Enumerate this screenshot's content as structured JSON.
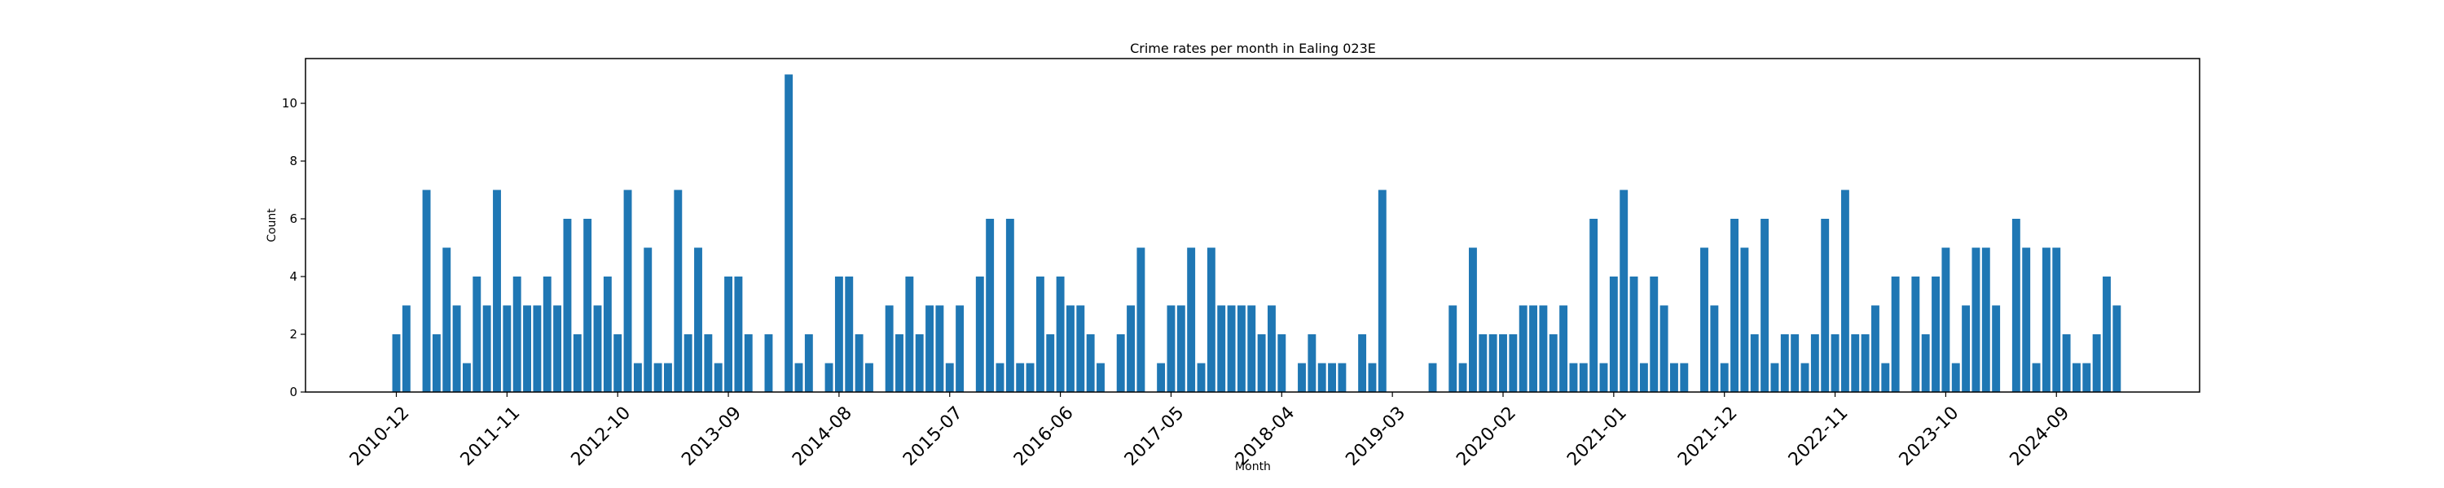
{
  "chart_data": {
    "type": "bar",
    "title": "Crime rates per month in Ealing 023E",
    "xlabel": "Month",
    "ylabel": "Count",
    "ylim": [
      0,
      11.55
    ],
    "yticks": [
      0,
      2,
      4,
      6,
      8,
      10
    ],
    "grid": false,
    "bar_color": "#1f77b4",
    "tick_labels": [
      {
        "label": "2010-12",
        "index": 0
      },
      {
        "label": "2011-11",
        "index": 11
      },
      {
        "label": "2012-10",
        "index": 22
      },
      {
        "label": "2013-09",
        "index": 33
      },
      {
        "label": "2014-08",
        "index": 44
      },
      {
        "label": "2015-07",
        "index": 55
      },
      {
        "label": "2016-06",
        "index": 66
      },
      {
        "label": "2017-05",
        "index": 77
      },
      {
        "label": "2018-04",
        "index": 88
      },
      {
        "label": "2019-03",
        "index": 99
      },
      {
        "label": "2020-02",
        "index": 110
      },
      {
        "label": "2021-01",
        "index": 121
      },
      {
        "label": "2021-12",
        "index": 132
      },
      {
        "label": "2022-11",
        "index": 143
      },
      {
        "label": "2023-10",
        "index": 154
      },
      {
        "label": "2024-09",
        "index": 165
      }
    ],
    "values": [
      2,
      3,
      0,
      7,
      2,
      5,
      3,
      1,
      4,
      3,
      7,
      3,
      4,
      3,
      3,
      4,
      3,
      6,
      2,
      6,
      3,
      4,
      2,
      7,
      1,
      5,
      1,
      1,
      7,
      2,
      5,
      2,
      1,
      4,
      4,
      2,
      0,
      2,
      0,
      11,
      1,
      2,
      0,
      1,
      4,
      4,
      2,
      1,
      0,
      3,
      2,
      4,
      2,
      3,
      3,
      1,
      3,
      0,
      4,
      6,
      1,
      6,
      1,
      1,
      4,
      2,
      4,
      3,
      3,
      2,
      1,
      0,
      2,
      3,
      5,
      0,
      1,
      3,
      3,
      5,
      1,
      5,
      3,
      3,
      3,
      3,
      2,
      3,
      2,
      0,
      1,
      2,
      1,
      1,
      1,
      0,
      2,
      1,
      7,
      0,
      0,
      0,
      0,
      1,
      0,
      3,
      1,
      5,
      2,
      2,
      2,
      2,
      3,
      3,
      3,
      2,
      3,
      1,
      1,
      6,
      1,
      4,
      7,
      4,
      1,
      4,
      3,
      1,
      1,
      0,
      5,
      3,
      1,
      6,
      5,
      2,
      6,
      1,
      2,
      2,
      1,
      2,
      6,
      2,
      7,
      2,
      2,
      3,
      1,
      4,
      0,
      4,
      2,
      4,
      5,
      1,
      3,
      5,
      5,
      3,
      0,
      6,
      5,
      1,
      5,
      5,
      2,
      1,
      1,
      2,
      4,
      3
    ]
  }
}
